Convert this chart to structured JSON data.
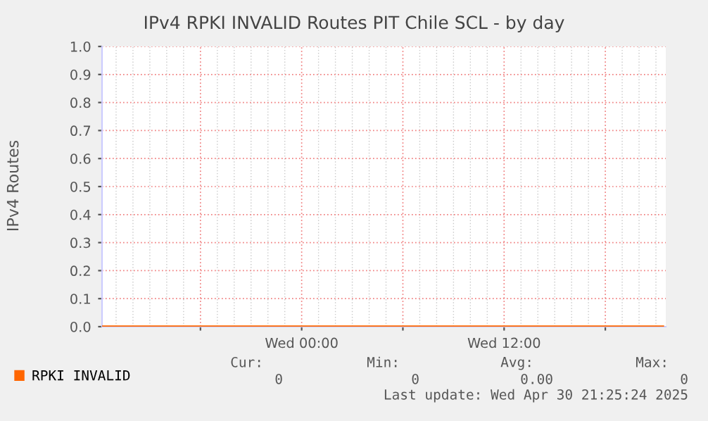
{
  "chart_data": {
    "type": "line",
    "title": "IPv4 RPKI INVALID Routes PIT Chile SCL - by day",
    "ylabel": "IPv4 Routes",
    "series": [
      {
        "name": "RPKI INVALID",
        "color": "#ff6600",
        "x": [
          "2025-04-29T12:10",
          "2025-04-29T18:00",
          "2025-04-30T00:00",
          "2025-04-30T06:00",
          "2025-04-30T12:00",
          "2025-04-30T18:00",
          "2025-04-30T21:25"
        ],
        "values": [
          0,
          0,
          0,
          0,
          0,
          0,
          0
        ]
      }
    ],
    "xlim": [
      "2025-04-29T12:10",
      "2025-04-30T21:35"
    ],
    "xticks": [
      {
        "value": "2025-04-29T18:00",
        "label": null
      },
      {
        "value": "2025-04-30T00:00",
        "label": "Wed 00:00"
      },
      {
        "value": "2025-04-30T06:00",
        "label": null
      },
      {
        "value": "2025-04-30T12:00",
        "label": "Wed 12:00"
      },
      {
        "value": "2025-04-30T18:00",
        "label": null
      }
    ],
    "ylim": [
      0,
      1
    ],
    "yticks": [
      {
        "value": 0,
        "label": "0.0"
      },
      0.1,
      0.2,
      0.3,
      0.4,
      0.5,
      0.6,
      0.7,
      0.8,
      0.9,
      {
        "value": 1,
        "label": "1.0"
      }
    ],
    "grid": true,
    "legend": "bottom left",
    "marker": "none",
    "line_style": "solid",
    "annotations": [
      "Cur:",
      "Min:",
      "Avg:",
      "Max:",
      "0",
      "0",
      "0.00",
      "0",
      "Last update: Wed Apr 30 21:25:24 2025"
    ]
  }
}
